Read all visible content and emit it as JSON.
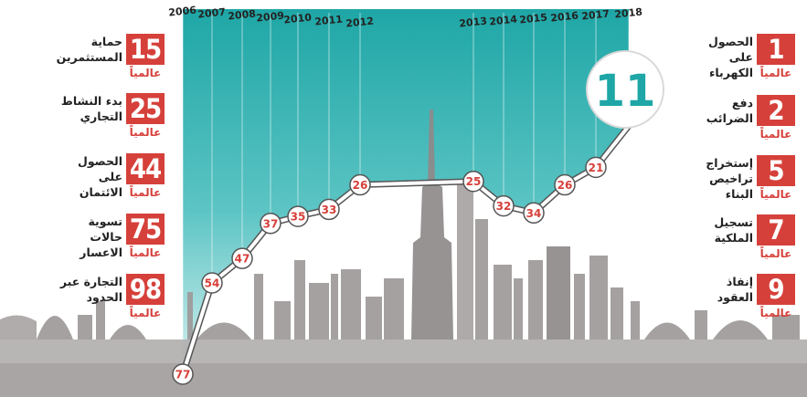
{
  "chart_data": {
    "type": "line",
    "x": [
      "2006",
      "2007",
      "2008",
      "2009",
      "2010",
      "2011",
      "2012",
      "2013",
      "2014",
      "2015",
      "2016",
      "2017",
      "2018"
    ],
    "values": [
      77,
      54,
      47,
      37,
      35,
      33,
      26,
      25,
      32,
      34,
      26,
      21,
      11
    ],
    "highlight_value": "11",
    "y_direction": "inverted (rank 1 at top)",
    "ylim": [
      0,
      80
    ],
    "line_color": "#ffffff",
    "fill_color": "#5cbfbf",
    "marker_color": "#d6403a",
    "grid": "vertical lines per year"
  },
  "left_panels": [
    {
      "rank": "15",
      "label": "حماية\nالمستثمرين",
      "global": "عالمياً"
    },
    {
      "rank": "25",
      "label": "بدء النشاط\nالتجاري",
      "global": "عالمياً"
    },
    {
      "rank": "44",
      "label": "الحصول على\nالائتمان",
      "global": "عالمياً"
    },
    {
      "rank": "75",
      "label": "تسوية حالات\nالاعسار",
      "global": "عالمياً"
    },
    {
      "rank": "98",
      "label": "التجارة عبر\nالحدود",
      "global": "عالمياً"
    }
  ],
  "right_panels": [
    {
      "rank": "1",
      "label": "الحصول على\nالكهرباء",
      "global": "عالمياً"
    },
    {
      "rank": "2",
      "label": "دفع\nالضرائب",
      "global": "عالمياً"
    },
    {
      "rank": "5",
      "label": "إستخراج تراخيص\nالبناء",
      "global": "عالمياً"
    },
    {
      "rank": "7",
      "label": "تسجيل\nالملكية",
      "global": "عالمياً"
    },
    {
      "rank": "9",
      "label": "إنفاذ\nالعقود",
      "global": "عالمياً"
    }
  ],
  "colors": {
    "accent_red": "#d6403a",
    "teal_top": "#1fa6a6",
    "teal_bottom": "#c9ecec",
    "skyline": "#9a9595",
    "badge_text": "#1fa6a6"
  }
}
